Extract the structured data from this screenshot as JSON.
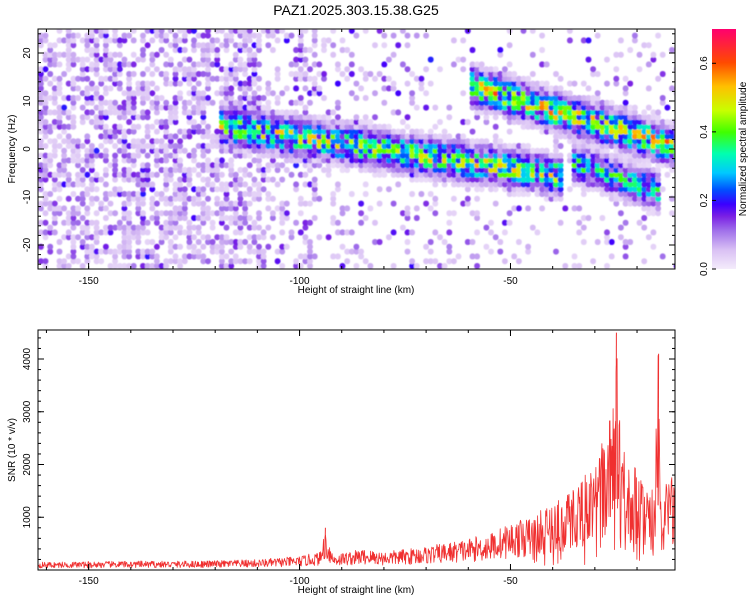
{
  "chart_data": [
    {
      "type": "heatmap",
      "title": "PAZ1.2025.303.15.38.G25",
      "xlabel": "Height of straight line (km)",
      "ylabel": "Frequency (Hz)",
      "xlim": [
        -162,
        -11
      ],
      "ylim": [
        -25,
        25
      ],
      "xticks": [
        -150,
        -100,
        -50
      ],
      "yticks": [
        -20,
        -10,
        0,
        10,
        20
      ],
      "colorbar": {
        "label": "Normalized spectral amplitude",
        "range": [
          0,
          0.7
        ],
        "ticks": [
          0.0,
          0.2,
          0.4,
          0.6
        ],
        "colormap": [
          "#ead2f8",
          "#c49cf0",
          "#8a2be2",
          "#3a00ff",
          "#0040ff",
          "#00c8ff",
          "#00ff9c",
          "#5cff00",
          "#d8ff00",
          "#ffb400",
          "#ff3000",
          "#ff006e"
        ]
      },
      "main_features": [
        {
          "name": "central trace",
          "x_range": [
            -118,
            -40
          ],
          "freq_start": 4,
          "freq_end": -6,
          "peak_amplitude": 0.45
        },
        {
          "name": "upper trace",
          "x_range": [
            -58,
            -12
          ],
          "freq_start": 12,
          "freq_end": 0,
          "peak_amplitude": 0.5
        },
        {
          "name": "lower branch",
          "x_range": [
            -34,
            -17
          ],
          "freq_start": -4,
          "freq_end": -9,
          "peak_amplitude": 0.35
        },
        {
          "name": "background noise",
          "x_range": [
            -162,
            -110
          ],
          "freq_start": -25,
          "freq_end": 25,
          "peak_amplitude": 0.15
        }
      ]
    },
    {
      "type": "line",
      "title": "",
      "xlabel": "Height of straight line (km)",
      "ylabel": "SNR (10 * v/v)",
      "xlim": [
        -162,
        -11
      ],
      "ylim": [
        0,
        4550
      ],
      "xticks": [
        -150,
        -100,
        -50
      ],
      "yticks": [
        1000,
        2000,
        3000,
        4000
      ],
      "series": [
        {
          "name": "SNR",
          "color": "#f03030",
          "x": [
            -162,
            -150,
            -140,
            -130,
            -120,
            -110,
            -100,
            -95,
            -94,
            -92,
            -85,
            -80,
            -75,
            -70,
            -65,
            -60,
            -55,
            -50,
            -45,
            -40,
            -38,
            -35,
            -33,
            -30,
            -28,
            -26,
            -25,
            -24,
            -23,
            -22,
            -21,
            -20,
            -18,
            -16,
            -15,
            -14,
            -13,
            -12,
            -11
          ],
          "values": [
            150,
            160,
            170,
            170,
            180,
            200,
            260,
            350,
            800,
            300,
            400,
            350,
            400,
            450,
            520,
            600,
            700,
            900,
            1000,
            1300,
            1400,
            1600,
            1800,
            2000,
            2500,
            3000,
            4500,
            3100,
            2600,
            2100,
            2000,
            1900,
            1600,
            1500,
            4100,
            700,
            1800,
            2100,
            1500
          ],
          "peaks": [
            {
              "x": -94,
              "value": 800
            },
            {
              "x": -25,
              "value": 4500
            },
            {
              "x": -15,
              "value": 4100
            }
          ]
        }
      ]
    }
  ]
}
